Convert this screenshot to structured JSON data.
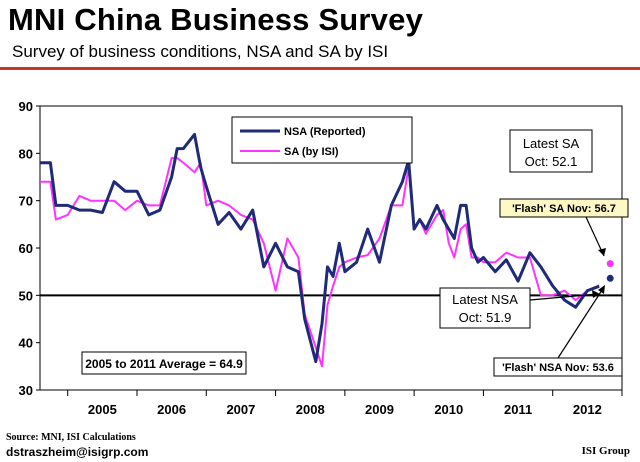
{
  "header": {
    "title": "MNI China Business Survey",
    "subtitle": "Survey of business conditions, NSA and SA by ISI"
  },
  "footer": {
    "source": "Source: MNI, ISI Calculations",
    "email": "dstraszheim@isigrp.com",
    "credit": "ISI Group"
  },
  "chart_data": {
    "type": "line",
    "title": "MNI China Business Survey",
    "subtitle": "Survey of business conditions, NSA and SA by ISI",
    "x_unit": "year (decimal, monthly)",
    "xlim": [
      2004.6,
      2013.0
    ],
    "ylim": [
      30,
      90
    ],
    "y_ticks": [
      30,
      40,
      50,
      60,
      70,
      80,
      90
    ],
    "x_tick_labels": [
      "2005",
      "2006",
      "2007",
      "2008",
      "2009",
      "2010",
      "2011",
      "2012"
    ],
    "grid": false,
    "legend_position": "top-center",
    "reference_line": 50,
    "series": [
      {
        "name": "NSA (Reported)",
        "color": "#1f2a78",
        "x": [
          2004.6,
          2004.75,
          2004.83,
          2005.0,
          2005.17,
          2005.33,
          2005.5,
          2005.67,
          2005.83,
          2006.0,
          2006.17,
          2006.33,
          2006.5,
          2006.58,
          2006.67,
          2006.83,
          2006.92,
          2007.0,
          2007.17,
          2007.33,
          2007.5,
          2007.67,
          2007.83,
          2008.0,
          2008.17,
          2008.33,
          2008.42,
          2008.58,
          2008.67,
          2008.75,
          2008.83,
          2008.92,
          2009.0,
          2009.17,
          2009.33,
          2009.5,
          2009.67,
          2009.83,
          2009.92,
          2010.0,
          2010.08,
          2010.17,
          2010.33,
          2010.42,
          2010.5,
          2010.58,
          2010.67,
          2010.75,
          2010.83,
          2010.92,
          2011.0,
          2011.17,
          2011.33,
          2011.5,
          2011.67,
          2011.83,
          2012.0,
          2012.17,
          2012.33,
          2012.5,
          2012.67
        ],
        "y": [
          78,
          78,
          69,
          69,
          68,
          68,
          67.5,
          74,
          72,
          72,
          67,
          68,
          75,
          81,
          81,
          84,
          77,
          73,
          65,
          67.5,
          64,
          68,
          56,
          61,
          56,
          55,
          45,
          36,
          44,
          56,
          54,
          61,
          55,
          57,
          64,
          57,
          69,
          74,
          78.5,
          64,
          66,
          64,
          69,
          66,
          64,
          62,
          69,
          69,
          60,
          57,
          58,
          55,
          57.5,
          53,
          59,
          56,
          52,
          49,
          47.5,
          51,
          51.9
        ]
      },
      {
        "name": "SA (by ISI)",
        "color": "#ff33ff",
        "x": [
          2004.6,
          2004.75,
          2004.83,
          2005.0,
          2005.17,
          2005.33,
          2005.5,
          2005.67,
          2005.83,
          2006.0,
          2006.17,
          2006.33,
          2006.5,
          2006.58,
          2006.67,
          2006.83,
          2006.92,
          2007.0,
          2007.17,
          2007.33,
          2007.5,
          2007.67,
          2007.83,
          2008.0,
          2008.17,
          2008.33,
          2008.42,
          2008.58,
          2008.67,
          2008.75,
          2008.83,
          2008.92,
          2009.0,
          2009.17,
          2009.33,
          2009.5,
          2009.67,
          2009.83,
          2009.92,
          2010.0,
          2010.08,
          2010.17,
          2010.33,
          2010.42,
          2010.5,
          2010.58,
          2010.67,
          2010.75,
          2010.83,
          2010.92,
          2011.0,
          2011.17,
          2011.33,
          2011.5,
          2011.67,
          2011.83,
          2012.0,
          2012.17,
          2012.33,
          2012.5,
          2012.67
        ],
        "y": [
          74,
          74,
          66,
          67,
          71,
          70,
          70,
          70,
          68,
          70,
          69,
          69,
          79,
          79,
          78,
          76,
          78,
          69,
          70,
          69,
          67,
          66,
          61,
          51,
          62,
          58,
          46,
          39,
          35,
          48,
          52,
          56,
          57,
          58,
          58.5,
          62,
          69,
          69,
          77,
          64,
          66,
          63,
          67,
          68,
          61,
          58,
          64,
          65,
          58,
          58,
          57,
          57,
          59,
          58,
          58,
          50,
          50,
          51,
          49,
          51,
          52.1
        ]
      }
    ],
    "flash_points": [
      {
        "name": "'Flash' SA Nov",
        "x": 2012.83,
        "y": 56.7,
        "color": "#ff33ff"
      },
      {
        "name": "'Flash' NSA Nov",
        "x": 2012.83,
        "y": 53.6,
        "color": "#1f2a78"
      }
    ],
    "annotations": {
      "latest_sa": [
        "Latest SA",
        "Oct: 52.1"
      ],
      "flash_sa": "'Flash' SA Nov: 56.7",
      "latest_nsa": [
        "Latest NSA",
        "Oct: 51.9"
      ],
      "flash_nsa": "'Flash' NSA Nov: 53.6",
      "average": "2005 to 2011 Average = 64.9"
    }
  }
}
